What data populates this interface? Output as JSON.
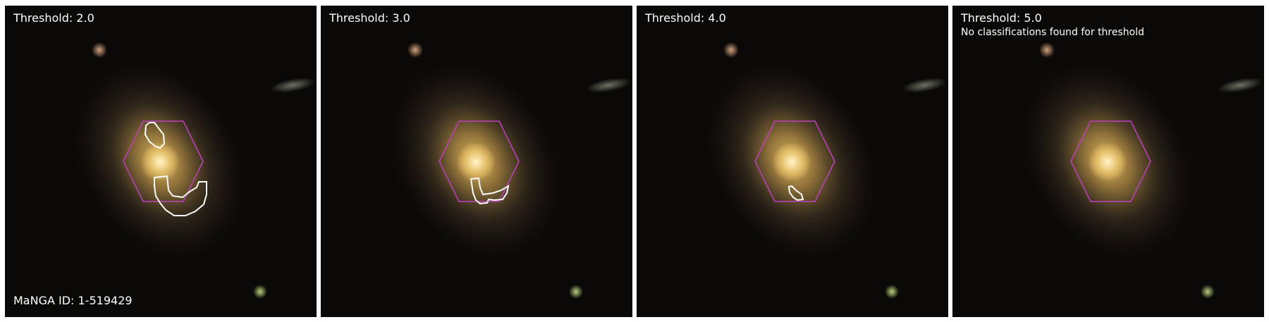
{
  "panels": [
    {
      "threshold_label": "Threshold: 2.0",
      "note": "",
      "contours": 2
    },
    {
      "threshold_label": "Threshold: 3.0",
      "note": "",
      "contours": 1
    },
    {
      "threshold_label": "Threshold: 4.0",
      "note": "",
      "contours": 1
    },
    {
      "threshold_label": "Threshold: 5.0",
      "note": "No classifications found for threshold",
      "contours": 0
    }
  ],
  "manga_id_label": "MaNGA ID: 1-519429",
  "colors": {
    "hexagon": "#c040c0",
    "contour": "#ffffff",
    "galaxy_core": "#fff0b0",
    "galaxy_halo": "#e8b86a",
    "background": "#0b0908"
  },
  "icons": [
    "galaxy-image",
    "ifu-hexagon",
    "classification-contour"
  ]
}
